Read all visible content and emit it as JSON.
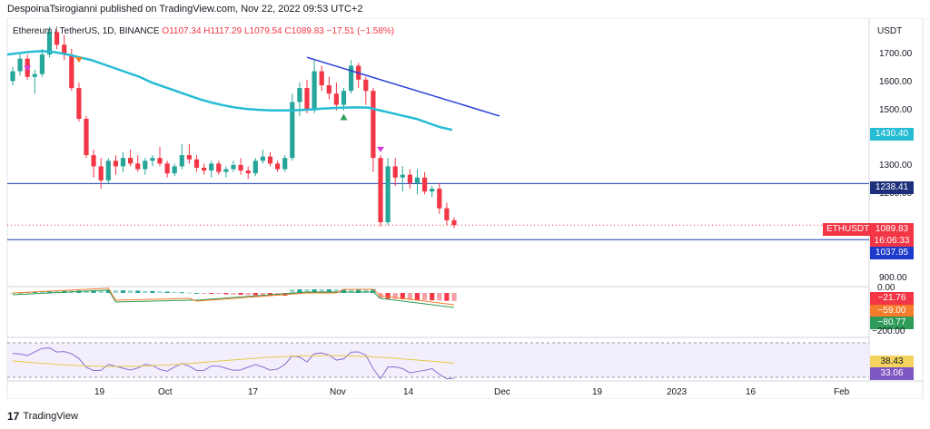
{
  "header": {
    "publish_line": "DespoinaTsirogianni published on TradingView.com, Nov 22, 2022 09:53 UTC+2"
  },
  "legend": {
    "symbol": "Ethereum / TetherUS, 1D, BINANCE",
    "open": "O1107.34",
    "high": "H1117.29",
    "low": "L1079.54",
    "close": "C1089.83",
    "change": "−17.51 (−1.58%)"
  },
  "price_axis": {
    "currency": "USDT",
    "ticks": [
      "1700.00",
      "1600.00",
      "1500.00",
      "1400.00",
      "1300.00",
      "1200.00",
      "900.00"
    ],
    "tags": {
      "ma_value": "1430.40",
      "resistance_value": "1238.41",
      "last_price": "1089.83",
      "countdown": "16:06:33",
      "support_value": "1037.95",
      "symbol_tag": "ETHUSDT"
    }
  },
  "macd": {
    "tick_top": "0.00",
    "tick_bottom": "−200.00",
    "hist_value": "−21.76",
    "signal_value": "−59.00",
    "macd_value": "−80.77"
  },
  "rsi": {
    "ma_value": "38.43",
    "rsi_value": "33.06"
  },
  "time_axis": {
    "labels": [
      "19",
      "Oct",
      "17",
      "Nov",
      "14",
      "Dec",
      "19",
      "2023",
      "16",
      "Feb"
    ]
  },
  "footer": {
    "brand": "TradingView",
    "logo_glyph": "17"
  },
  "colors": {
    "up": "#26a69a",
    "down": "#f23645",
    "ma": "#26bcd4",
    "trendline": "#2a3fd8",
    "hline": "#1a3fb0",
    "support_tag": "#1e3acb",
    "resistance_tag": "#1c2f7a",
    "macd_line": "#2e9b58",
    "signal_line": "#f57c2a",
    "rsi_line": "#8c6ccf",
    "rsi_ma": "#e6c94a"
  },
  "chart_data": {
    "type": "candlestick",
    "title": "Ethereum / TetherUS, 1D, BINANCE",
    "ylabel": "USDT",
    "ylim": [
      870,
      1830
    ],
    "x_labels": [
      "19",
      "Oct",
      "17",
      "Nov",
      "14",
      "Dec",
      "19",
      "2023",
      "16",
      "Feb"
    ],
    "candles": [
      [
        1605,
        1655,
        1590,
        1640
      ],
      [
        1640,
        1700,
        1625,
        1685
      ],
      [
        1685,
        1700,
        1610,
        1620
      ],
      [
        1620,
        1645,
        1560,
        1630
      ],
      [
        1630,
        1720,
        1620,
        1700
      ],
      [
        1700,
        1800,
        1690,
        1780
      ],
      [
        1780,
        1790,
        1720,
        1735
      ],
      [
        1735,
        1770,
        1680,
        1700
      ],
      [
        1700,
        1720,
        1570,
        1580
      ],
      [
        1580,
        1600,
        1460,
        1470
      ],
      [
        1470,
        1480,
        1330,
        1340
      ],
      [
        1340,
        1360,
        1260,
        1300
      ],
      [
        1300,
        1330,
        1220,
        1250
      ],
      [
        1250,
        1330,
        1240,
        1320
      ],
      [
        1320,
        1340,
        1270,
        1300
      ],
      [
        1300,
        1350,
        1280,
        1330
      ],
      [
        1330,
        1360,
        1300,
        1310
      ],
      [
        1310,
        1340,
        1280,
        1290
      ],
      [
        1290,
        1330,
        1270,
        1320
      ],
      [
        1320,
        1340,
        1300,
        1330
      ],
      [
        1330,
        1370,
        1300,
        1310
      ],
      [
        1310,
        1320,
        1260,
        1275
      ],
      [
        1275,
        1310,
        1265,
        1300
      ],
      [
        1300,
        1380,
        1290,
        1340
      ],
      [
        1340,
        1380,
        1310,
        1325
      ],
      [
        1325,
        1340,
        1280,
        1295
      ],
      [
        1295,
        1310,
        1270,
        1285
      ],
      [
        1285,
        1320,
        1260,
        1310
      ],
      [
        1310,
        1320,
        1270,
        1280
      ],
      [
        1280,
        1300,
        1260,
        1290
      ],
      [
        1290,
        1320,
        1280,
        1305
      ],
      [
        1305,
        1330,
        1270,
        1285
      ],
      [
        1285,
        1300,
        1255,
        1275
      ],
      [
        1275,
        1330,
        1265,
        1320
      ],
      [
        1320,
        1360,
        1310,
        1335
      ],
      [
        1335,
        1350,
        1300,
        1310
      ],
      [
        1310,
        1320,
        1280,
        1290
      ],
      [
        1290,
        1340,
        1280,
        1330
      ],
      [
        1330,
        1560,
        1320,
        1530
      ],
      [
        1530,
        1600,
        1480,
        1580
      ],
      [
        1580,
        1610,
        1490,
        1500
      ],
      [
        1500,
        1680,
        1490,
        1640
      ],
      [
        1640,
        1660,
        1570,
        1590
      ],
      [
        1590,
        1620,
        1540,
        1560
      ],
      [
        1560,
        1600,
        1500,
        1520
      ],
      [
        1520,
        1580,
        1500,
        1570
      ],
      [
        1570,
        1680,
        1560,
        1660
      ],
      [
        1660,
        1670,
        1580,
        1610
      ],
      [
        1610,
        1620,
        1520,
        1570
      ],
      [
        1570,
        1580,
        1280,
        1330
      ],
      [
        1330,
        1340,
        1085,
        1100
      ],
      [
        1100,
        1330,
        1090,
        1300
      ],
      [
        1300,
        1330,
        1230,
        1260
      ],
      [
        1260,
        1300,
        1210,
        1270
      ],
      [
        1270,
        1290,
        1220,
        1240
      ],
      [
        1240,
        1290,
        1200,
        1260
      ],
      [
        1260,
        1280,
        1200,
        1210
      ],
      [
        1210,
        1230,
        1190,
        1220
      ],
      [
        1220,
        1240,
        1130,
        1150
      ],
      [
        1150,
        1170,
        1090,
        1107
      ],
      [
        1107.34,
        1117.29,
        1079.54,
        1089.83
      ]
    ],
    "moving_average": [
      1700,
      1705,
      1710,
      1712,
      1708,
      1700,
      1690,
      1680,
      1665,
      1650,
      1635,
      1620,
      1600,
      1585,
      1570,
      1555,
      1540,
      1528,
      1518,
      1510,
      1505,
      1502,
      1500,
      1500,
      1501,
      1503,
      1506,
      1508,
      1510,
      1511,
      1510,
      1500,
      1490,
      1480,
      1470,
      1455,
      1440,
      1430.4
    ],
    "horizontal_lines": [
      1238.41,
      1037.95
    ],
    "trendline": [
      [
        40,
        1690
      ],
      [
        60,
        1480
      ]
    ],
    "macd": {
      "hist_last": -21.76,
      "signal_last": -59.0,
      "macd_last": -80.77
    },
    "rsi": {
      "rsi_last": 33.06,
      "ma_last": 38.43
    }
  }
}
